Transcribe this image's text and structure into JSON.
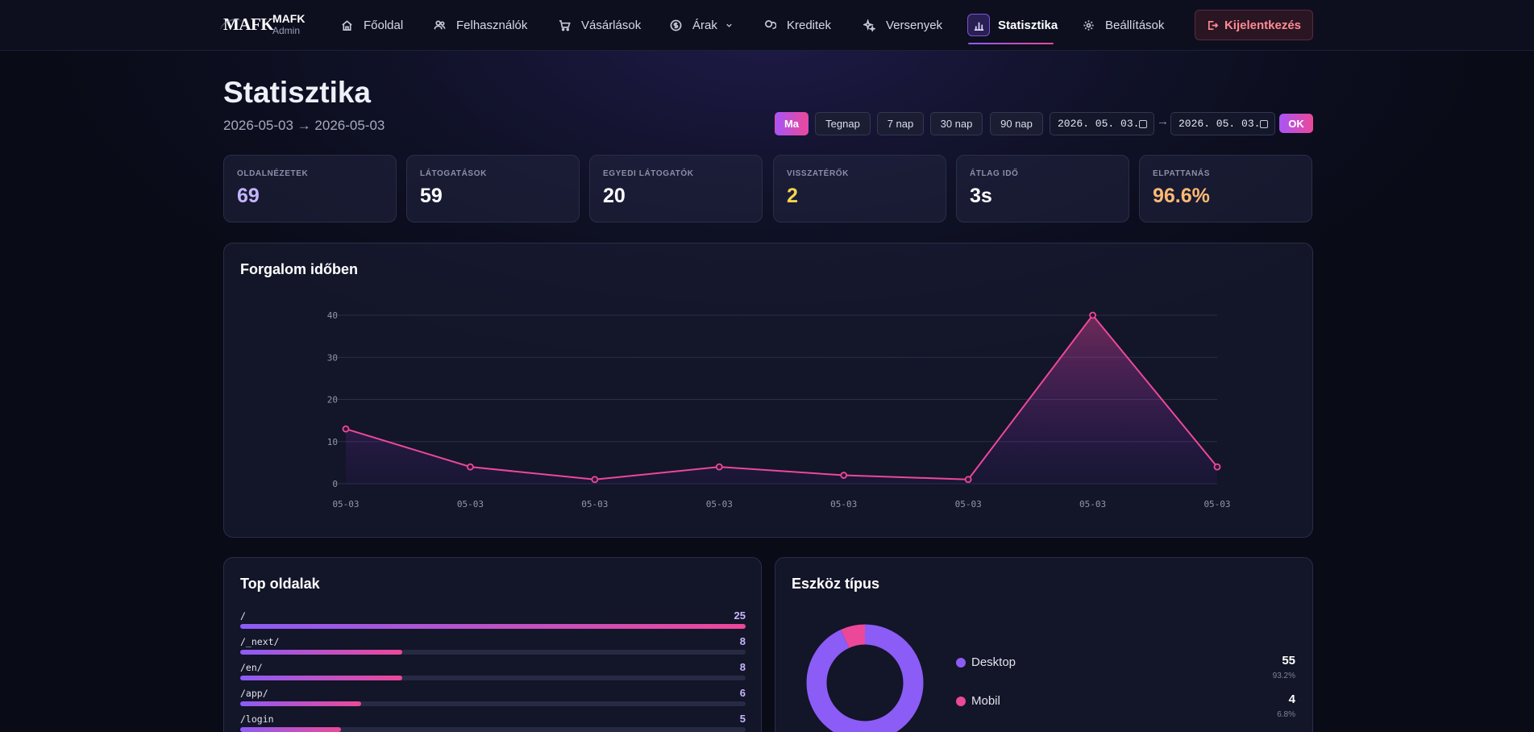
{
  "brand": {
    "logo": "MAFK",
    "title": "MAFK",
    "subtitle": "Admin"
  },
  "nav": {
    "items": [
      {
        "label": "Főoldal",
        "icon": "home-icon"
      },
      {
        "label": "Felhasználók",
        "icon": "users-icon"
      },
      {
        "label": "Vásárlások",
        "icon": "cart-icon"
      },
      {
        "label": "Árak",
        "icon": "dollar-icon"
      },
      {
        "label": "Kreditek",
        "icon": "coins-icon"
      },
      {
        "label": "Versenyek",
        "icon": "sparkles-icon"
      },
      {
        "label": "Statisztika",
        "icon": "bar-chart-icon",
        "active": true
      },
      {
        "label": "Beállítások",
        "icon": "gear-icon"
      }
    ],
    "logout_label": "Kijelentkezés"
  },
  "header": {
    "title": "Statisztika",
    "range_text": "2026-05-03 → 2026-05-03",
    "range_buttons": [
      "Ma",
      "Tegnap",
      "7 nap",
      "30 nap",
      "90 nap"
    ],
    "active_range": "Ma",
    "date_from": "2026. 05. 03.",
    "date_to": "2026. 05. 03.",
    "arrow": "→",
    "ok_label": "OK"
  },
  "stats": [
    {
      "label": "OLDALNÉZETEK",
      "value": "69",
      "color": "#c4b5fd"
    },
    {
      "label": "LÁTOGATÁSOK",
      "value": "59",
      "color": "#ffffff"
    },
    {
      "label": "EGYEDI LÁTOGATÓK",
      "value": "20",
      "color": "#ffffff"
    },
    {
      "label": "VISSZATÉRŐK",
      "value": "2",
      "color": "#fcd34d"
    },
    {
      "label": "ÁTLAG IDŐ",
      "value": "3s",
      "color": "#ffffff"
    },
    {
      "label": "ELPATTANÁS",
      "value": "96.6%",
      "color": "#fdba74"
    }
  ],
  "traffic": {
    "title": "Forgalom időben"
  },
  "chart_data": {
    "type": "area",
    "title": "Forgalom időben",
    "x": [
      "05-03",
      "05-03",
      "05-03",
      "05-03",
      "05-03",
      "05-03",
      "05-03",
      "05-03"
    ],
    "values": [
      13,
      4,
      1,
      4,
      2,
      1,
      40,
      4
    ],
    "yticks": [
      0,
      10,
      20,
      30,
      40
    ],
    "ylim": [
      0,
      40
    ],
    "grid": true,
    "line_color": "#ec4899"
  },
  "top_pages": {
    "title": "Top oldalak",
    "rows": [
      {
        "path": "/",
        "count": "25",
        "value": 25
      },
      {
        "path": "/_next/",
        "count": "8",
        "value": 8
      },
      {
        "path": "/en/",
        "count": "8",
        "value": 8
      },
      {
        "path": "/app/",
        "count": "6",
        "value": 6
      },
      {
        "path": "/login",
        "count": "5",
        "value": 5
      }
    ]
  },
  "devices": {
    "title": "Eszköz típus",
    "items": [
      {
        "name": "Desktop",
        "value": "55",
        "pct": "93.2%",
        "fraction": 0.932,
        "color": "#8b5cf6"
      },
      {
        "name": "Mobil",
        "value": "4",
        "pct": "6.8%",
        "fraction": 0.068,
        "color": "#ec4899"
      }
    ]
  }
}
